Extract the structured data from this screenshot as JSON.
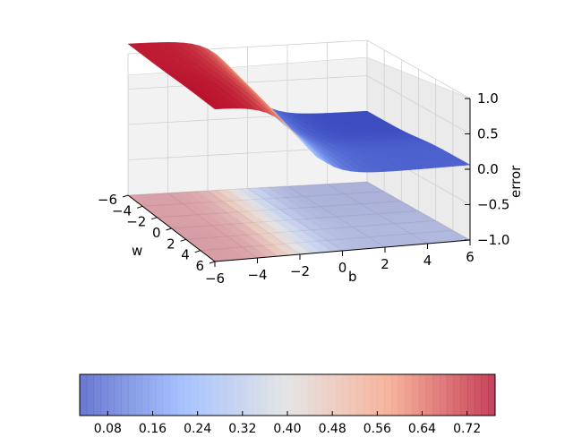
{
  "chart_data": [
    {
      "type": "surface3d",
      "xlabel": "w",
      "ylabel": "b",
      "zlabel": "error",
      "xlim": [
        -6,
        6
      ],
      "ylim": [
        -6,
        6
      ],
      "zlim": [
        -1.0,
        1.0
      ],
      "xticks": [
        "−6",
        "−4",
        "−2",
        "0",
        "2",
        "4",
        "6"
      ],
      "yticks": [
        "−6",
        "−4",
        "−2",
        "0",
        "2",
        "4",
        "6"
      ],
      "zticks": [
        "−1.0",
        "−0.5",
        "0.0",
        "0.5",
        "1.0"
      ],
      "surface": {
        "description_of_shape": "error high (~0.75) at w=-6,b=-6 decreasing across b, low (~0.05) plateau at b>0",
        "corner_values": {
          "w-6_b-6": 0.75,
          "w6_b-6": 0.72,
          "w-6_b6": 0.06,
          "w6_b6": 0.04
        },
        "contour_offset_z": -1.0
      },
      "colormap": "coolwarm",
      "colorbar": {
        "ticks": [
          "0.08",
          "0.16",
          "0.24",
          "0.32",
          "0.40",
          "0.48",
          "0.56",
          "0.64",
          "0.72"
        ],
        "tick_values": [
          0.08,
          0.16,
          0.24,
          0.32,
          0.4,
          0.48,
          0.56,
          0.64,
          0.72
        ],
        "range": [
          0.03,
          0.77
        ],
        "orientation": "horizontal"
      },
      "grid": true
    }
  ]
}
